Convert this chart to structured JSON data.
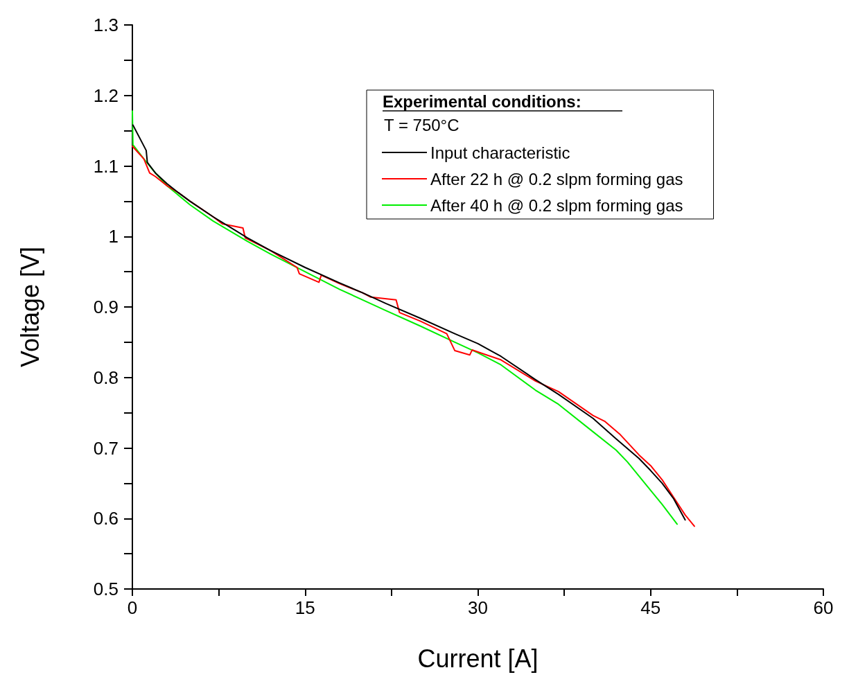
{
  "chart_data": {
    "type": "line",
    "xlabel": "Current [A]",
    "ylabel": "Voltage [V]",
    "xlim": [
      0,
      60
    ],
    "xticks": [
      0,
      15,
      30,
      45,
      60
    ],
    "ylim": [
      0.5,
      1.3
    ],
    "yticks": [
      0.5,
      0.6,
      0.7,
      0.8,
      0.9,
      1.0,
      1.1,
      1.2,
      1.3
    ],
    "grid": false,
    "legend": "top right",
    "marker": "none",
    "line_style": "solid",
    "legend_title": "Experimental conditions:",
    "annotations": [
      "T = 750°C"
    ],
    "series": [
      {
        "name": "Input characteristic",
        "color": "#000000",
        "x": [
          0.05,
          1.2,
          1.3,
          2,
          3,
          4,
          5,
          7,
          9,
          10,
          12,
          15,
          18,
          20,
          22,
          25,
          28,
          30,
          32,
          35,
          37,
          40,
          42,
          44,
          45,
          46,
          47,
          48
        ],
        "values": [
          1.158,
          1.122,
          1.105,
          1.09,
          1.075,
          1.062,
          1.05,
          1.028,
          1.008,
          0.998,
          0.98,
          0.956,
          0.934,
          0.92,
          0.905,
          0.884,
          0.862,
          0.848,
          0.83,
          0.797,
          0.776,
          0.742,
          0.713,
          0.685,
          0.668,
          0.65,
          0.628,
          0.598
        ]
      },
      {
        "name": "After 22 h @ 0.2 slpm forming gas",
        "color": "#ff0000",
        "x": [
          0,
          1,
          1.5,
          2,
          3,
          4,
          5,
          7,
          7.8,
          9.6,
          9.8,
          12,
          14.3,
          14.5,
          16.2,
          16.4,
          18,
          20,
          20.7,
          22.9,
          23.2,
          25,
          27.3,
          28,
          29.3,
          29.5,
          32,
          35,
          37,
          40,
          41,
          42.3,
          44,
          45,
          46,
          47,
          48,
          48.8
        ],
        "values": [
          1.128,
          1.11,
          1.09,
          1.085,
          1.072,
          1.062,
          1.05,
          1.028,
          1.018,
          1.012,
          0.998,
          0.98,
          0.956,
          0.947,
          0.935,
          0.945,
          0.933,
          0.92,
          0.914,
          0.91,
          0.892,
          0.88,
          0.862,
          0.838,
          0.832,
          0.839,
          0.825,
          0.795,
          0.78,
          0.746,
          0.738,
          0.72,
          0.69,
          0.675,
          0.655,
          0.63,
          0.605,
          0.589
        ]
      },
      {
        "name": "After 40 h @ 0.2 slpm forming gas",
        "color": "#00ee00",
        "x": [
          0,
          0.05,
          1,
          2,
          3,
          5,
          7,
          10,
          12,
          15,
          18,
          20,
          22,
          25,
          28,
          30,
          32,
          35,
          37,
          40,
          42,
          43,
          45,
          46,
          47.3
        ],
        "values": [
          1.178,
          1.13,
          1.11,
          1.09,
          1.072,
          1.045,
          1.022,
          0.993,
          0.975,
          0.95,
          0.925,
          0.91,
          0.895,
          0.873,
          0.85,
          0.835,
          0.818,
          0.782,
          0.762,
          0.723,
          0.697,
          0.68,
          0.64,
          0.62,
          0.592
        ]
      }
    ]
  }
}
